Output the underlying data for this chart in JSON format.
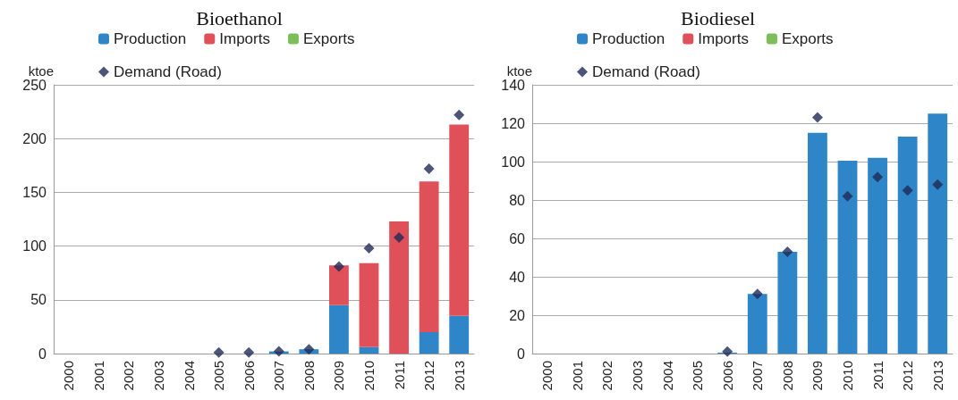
{
  "chart_data": [
    {
      "type": "bar",
      "title": "Bioethanol",
      "ylabel": "ktoe",
      "stacked": true,
      "legend": "top",
      "grid": "y",
      "categories": [
        "2000",
        "2001",
        "2002",
        "2003",
        "2004",
        "2005",
        "2006",
        "2007",
        "2008",
        "2009",
        "2010",
        "2011",
        "2012",
        "2013"
      ],
      "ylim": [
        0,
        250
      ],
      "yticks": [
        0,
        50,
        100,
        150,
        200,
        250
      ],
      "series": [
        {
          "name": "Production",
          "color": "#2e86c8",
          "values": [
            0,
            0,
            0,
            0,
            0,
            0,
            0,
            2,
            4,
            45,
            6,
            0,
            20,
            35
          ]
        },
        {
          "name": "Imports",
          "color": "#e05058",
          "values": [
            0,
            0,
            0,
            0,
            0,
            0,
            0,
            0,
            0,
            37,
            78,
            123,
            140,
            178
          ]
        },
        {
          "name": "Exports",
          "color": "#7cbf5a",
          "values": [
            0,
            0,
            0,
            0,
            0,
            0,
            0,
            0,
            0,
            0,
            0,
            0,
            0,
            0
          ]
        },
        {
          "name": "Demand (Road)",
          "type": "scatter",
          "marker": "diamond",
          "color": "#1f2a56",
          "values": [
            null,
            null,
            null,
            null,
            null,
            1,
            1,
            2,
            4,
            81,
            98,
            108,
            172,
            222
          ]
        }
      ]
    },
    {
      "type": "bar",
      "title": "Biodiesel",
      "ylabel": "ktoe",
      "stacked": true,
      "legend": "top",
      "grid": "y",
      "categories": [
        "2000",
        "2001",
        "2002",
        "2003",
        "2004",
        "2005",
        "2006",
        "2007",
        "2008",
        "2009",
        "2010",
        "2011",
        "2012",
        "2013"
      ],
      "ylim": [
        0,
        140
      ],
      "yticks": [
        0,
        20,
        40,
        60,
        80,
        100,
        120,
        140
      ],
      "series": [
        {
          "name": "Production",
          "color": "#2e86c8",
          "values": [
            0,
            0,
            0,
            0,
            0,
            0,
            0.5,
            31,
            53,
            115,
            100.5,
            102,
            113,
            125
          ]
        },
        {
          "name": "Imports",
          "color": "#e05058",
          "values": [
            0,
            0,
            0,
            0,
            0,
            0,
            0,
            0,
            0,
            0,
            0,
            0,
            0,
            0
          ]
        },
        {
          "name": "Exports",
          "color": "#7cbf5a",
          "values": [
            0,
            0,
            0,
            0,
            0,
            0,
            0,
            0,
            0,
            0,
            0,
            0,
            0,
            0
          ]
        },
        {
          "name": "Demand (Road)",
          "type": "scatter",
          "marker": "diamond",
          "color": "#1f2a56",
          "values": [
            null,
            null,
            null,
            null,
            null,
            null,
            1,
            31,
            53,
            123,
            82,
            92,
            85,
            88
          ]
        }
      ]
    }
  ]
}
